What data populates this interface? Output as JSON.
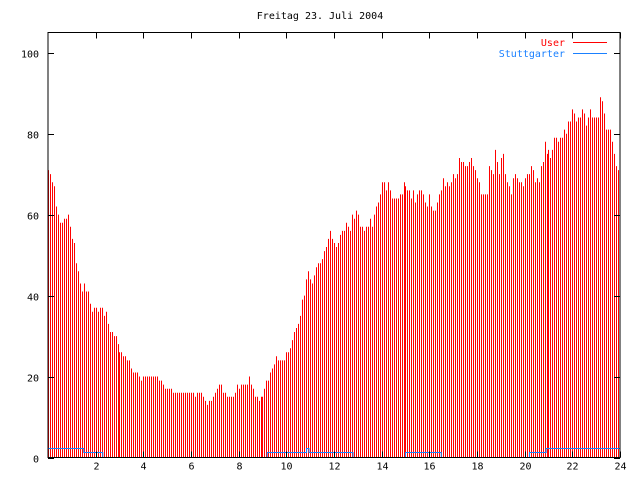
{
  "chart_data": {
    "type": "bar",
    "title": "Freitag 23. Juli 2004",
    "xlabel": "",
    "ylabel": "",
    "xlim": [
      0,
      24
    ],
    "ylim": [
      0,
      105
    ],
    "x_step_hours": 0.0833333,
    "x_ticks": [
      2,
      4,
      6,
      8,
      10,
      12,
      14,
      16,
      18,
      20,
      22,
      24
    ],
    "y_ticks": [
      0,
      20,
      40,
      60,
      80,
      100
    ],
    "grid": false,
    "legend_position": "top-right",
    "series": [
      {
        "name": "User",
        "style": "impulses",
        "color": "#ff0000",
        "values": [
          71,
          70,
          68,
          67,
          62,
          60,
          58,
          58,
          59,
          59,
          60,
          57,
          54,
          53,
          48,
          46,
          43,
          41,
          43,
          41,
          41,
          38,
          36,
          37,
          37,
          36,
          37,
          37,
          35,
          36,
          33,
          31,
          31,
          30,
          30,
          28,
          26,
          26,
          25,
          25,
          24,
          24,
          22,
          21,
          21,
          21,
          20,
          19,
          20,
          20,
          20,
          20,
          20,
          20,
          20,
          20,
          19,
          19,
          18,
          17,
          17,
          17,
          17,
          16,
          16,
          16,
          16,
          16,
          16,
          16,
          16,
          16,
          16,
          16,
          15,
          16,
          16,
          16,
          15,
          14,
          13,
          14,
          14,
          15,
          16,
          17,
          18,
          18,
          16,
          16,
          15,
          15,
          15,
          15,
          16,
          18,
          17,
          18,
          18,
          18,
          18,
          20,
          18,
          17,
          15,
          15,
          14,
          15,
          15,
          17,
          19,
          19,
          21,
          22,
          23,
          25,
          24,
          24,
          24,
          24,
          26,
          26,
          27,
          29,
          31,
          32,
          33,
          35,
          39,
          40,
          44,
          46,
          44,
          43,
          45,
          47,
          48,
          48,
          49,
          51,
          52,
          54,
          56,
          54,
          53,
          52,
          53,
          55,
          56,
          56,
          58,
          57,
          56,
          60,
          59,
          61,
          60,
          57,
          57,
          56,
          57,
          57,
          59,
          57,
          60,
          62,
          63,
          65,
          68,
          68,
          66,
          68,
          66,
          64,
          64,
          64,
          64,
          65,
          65,
          68,
          67,
          66,
          66,
          64,
          66,
          63,
          65,
          66,
          66,
          65,
          63,
          62,
          65,
          62,
          61,
          61,
          63,
          65,
          66,
          69,
          67,
          68,
          67,
          68,
          70,
          69,
          70,
          74,
          73,
          73,
          72,
          72,
          73,
          74,
          72,
          71,
          69,
          68,
          65,
          65,
          65,
          65,
          72,
          71,
          70,
          76,
          73,
          70,
          74,
          75,
          70,
          68,
          67,
          65,
          69,
          70,
          69,
          68,
          68,
          67,
          69,
          70,
          70,
          72,
          71,
          68,
          69,
          68,
          72,
          73,
          78,
          75,
          76,
          74,
          76,
          79,
          79,
          78,
          79,
          79,
          81,
          80,
          83,
          83,
          86,
          85,
          83,
          84,
          84,
          86,
          85,
          82,
          84,
          86,
          84,
          84,
          84,
          84,
          89,
          88,
          85,
          81,
          81,
          81,
          78,
          75,
          72,
          71
        ]
      },
      {
        "name": "Stuttgarter",
        "style": "steps",
        "color": "#1a80ff",
        "segments": [
          {
            "from": 0,
            "to": 1.5,
            "value": 2
          },
          {
            "from": 1.5,
            "to": 2.3,
            "value": 1
          },
          {
            "from": 2.3,
            "to": 9.2,
            "value": 0
          },
          {
            "from": 9.2,
            "to": 10.85,
            "value": 1
          },
          {
            "from": 10.85,
            "to": 10.95,
            "value": 2
          },
          {
            "from": 10.95,
            "to": 12.8,
            "value": 1
          },
          {
            "from": 12.8,
            "to": 15.0,
            "value": 0
          },
          {
            "from": 15.0,
            "to": 16.5,
            "value": 1
          },
          {
            "from": 16.5,
            "to": 20.2,
            "value": 0
          },
          {
            "from": 20.2,
            "to": 20.9,
            "value": 1
          },
          {
            "from": 20.9,
            "to": 24,
            "value": 2
          }
        ]
      }
    ]
  }
}
